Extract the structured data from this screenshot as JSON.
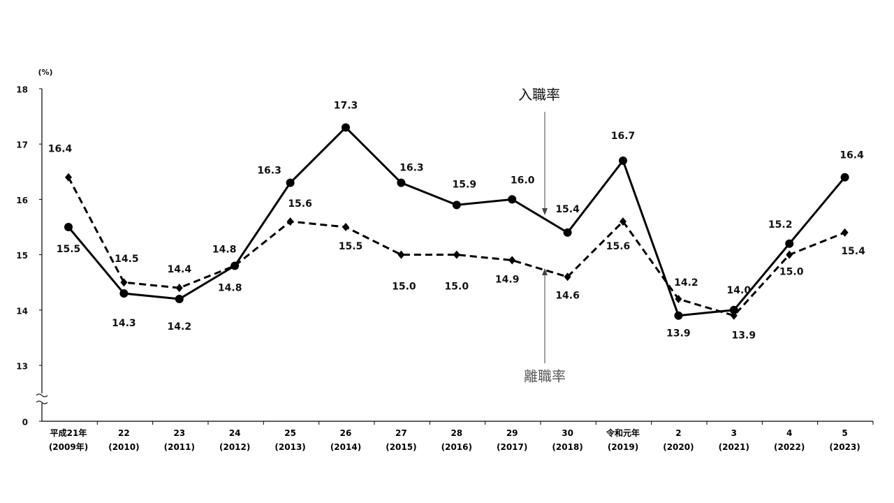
{
  "chart_data": {
    "type": "line",
    "y_label": "(%)",
    "categories": [
      "平成21年\n(2009年)",
      "22\n(2010)",
      "23\n(2011)",
      "24\n(2012)",
      "25\n(2013)",
      "26\n(2014)",
      "27\n(2015)",
      "28\n(2016)",
      "29\n(2017)",
      "30\n(2018)",
      "令和元年\n(2019)",
      "2\n(2020)",
      "3\n(2021)",
      "4\n(2022)",
      "5\n(2023)"
    ],
    "series": [
      {
        "name": "入職率",
        "color": "#000000",
        "style": "solid",
        "marker": "circle",
        "values": [
          15.5,
          14.3,
          14.2,
          14.8,
          16.3,
          17.3,
          16.3,
          15.9,
          16.0,
          15.4,
          16.7,
          13.9,
          14.0,
          15.2,
          16.4
        ],
        "value_labels": [
          "15.5",
          "14.3",
          "14.2",
          "14.8",
          "16.3",
          "17.3",
          "16.3",
          "15.9",
          "16.0",
          "15.4",
          "16.7",
          "13.9",
          "14.0",
          "15.2",
          "16.4"
        ]
      },
      {
        "name": "離職率",
        "color": "#000000",
        "style": "dashed",
        "marker": "diamond",
        "values": [
          16.4,
          14.5,
          14.4,
          14.8,
          15.6,
          15.5,
          15.0,
          15.0,
          14.9,
          14.6,
          15.6,
          14.2,
          13.9,
          15.0,
          15.4
        ],
        "value_labels": [
          "16.4",
          "14.5",
          "14.4",
          "14.8",
          "15.6",
          "15.5",
          "15.0",
          "15.0",
          "14.9",
          "14.6",
          "15.6",
          "14.2",
          "13.9",
          "15.0",
          "15.4"
        ]
      }
    ],
    "ylim": [
      0,
      18
    ],
    "yticks": [
      0,
      13,
      14,
      15,
      16,
      17,
      18
    ],
    "axis_break": true,
    "grid": false
  }
}
